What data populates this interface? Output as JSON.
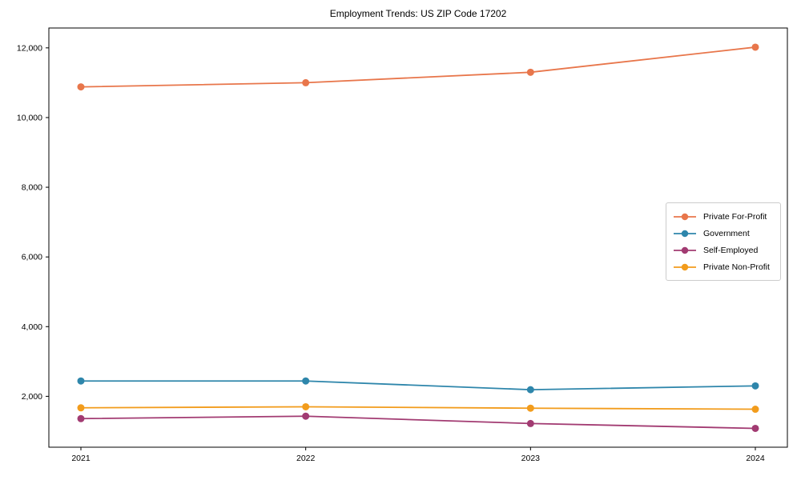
{
  "figure": {
    "title": "Employment Trends: US ZIP Code 17202"
  },
  "chart_data": {
    "type": "line",
    "title": "Employment Trends: US ZIP Code 17202",
    "categories": [
      "2021",
      "2022",
      "2023",
      "2024"
    ],
    "series": [
      {
        "name": "Private For-Profit",
        "color": "#E8764B",
        "values": [
          10880,
          11000,
          11300,
          12020
        ]
      },
      {
        "name": "Government",
        "color": "#2E86AB",
        "values": [
          2440,
          2440,
          2190,
          2300
        ]
      },
      {
        "name": "Self-Employed",
        "color": "#A23B72",
        "values": [
          1360,
          1430,
          1220,
          1080
        ]
      },
      {
        "name": "Private Non-Profit",
        "color": "#F29C1C",
        "values": [
          1670,
          1700,
          1660,
          1630
        ]
      }
    ],
    "xlabel": "",
    "ylabel": "",
    "ylim": [
      540,
      12570
    ],
    "yticks": [
      2000,
      4000,
      6000,
      8000,
      10000,
      12000
    ],
    "ytick_labels": [
      "2,000",
      "4,000",
      "6,000",
      "8,000",
      "10,000",
      "12,000"
    ],
    "xtick_labels": [
      "2021",
      "2022",
      "2023",
      "2024"
    ],
    "grid": false,
    "legend_position": "right-middle",
    "marker": "circle",
    "axis_color": "#000000"
  }
}
